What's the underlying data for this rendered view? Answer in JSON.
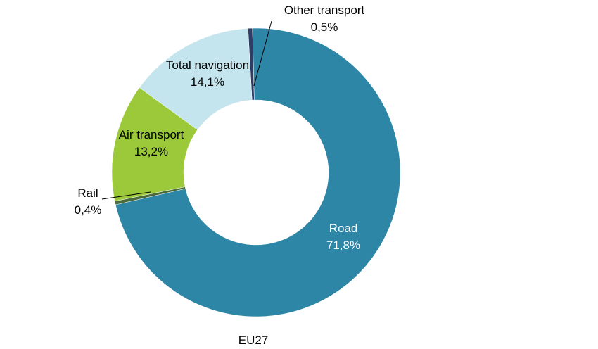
{
  "chart_data": {
    "type": "pie",
    "variant": "donut",
    "xlabel": "EU27",
    "slices": [
      {
        "name": "Road",
        "value": 71.8,
        "value_label": "71,8%",
        "color": "#2e86a6",
        "label_color": "#ffffff"
      },
      {
        "name": "Rail",
        "value": 0.4,
        "value_label": "0,4%",
        "color": "#4b6b3a",
        "label_color": "#000000"
      },
      {
        "name": "Air transport",
        "value": 13.2,
        "value_label": "13,2%",
        "color": "#9bc93a",
        "label_color": "#000000"
      },
      {
        "name": "Total navigation",
        "value": 14.1,
        "value_label": "14,1%",
        "color": "#c5e5ee",
        "label_color": "#000000"
      },
      {
        "name": "Other transport",
        "value": 0.5,
        "value_label": "0,5%",
        "color": "#2f3d66",
        "label_color": "#000000"
      }
    ]
  }
}
